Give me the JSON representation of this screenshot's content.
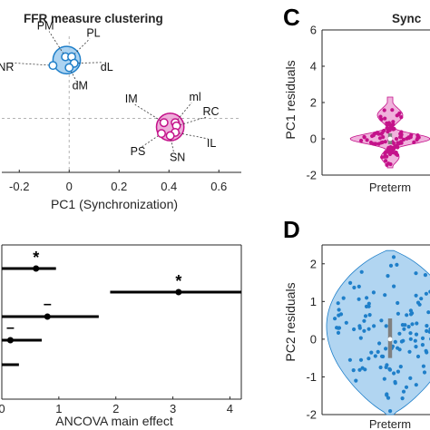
{
  "colors": {
    "blue": "#1f7fc9",
    "blue_fill": "#9ecbee",
    "magenta": "#c4128a",
    "magenta_fill": "#ec9fd3",
    "grid": "#b3b3b3",
    "axis": "#262626"
  },
  "chart_data": [
    {
      "type": "scatter",
      "title": "FFR measure clustering",
      "xlabel": "PC1 (Synchronization)",
      "ylabel": "",
      "xlim": [
        -0.27,
        0.69
      ],
      "ylim": [
        -0.25,
        0.38
      ],
      "xticks": [
        -0.2,
        0,
        0.2,
        0.4,
        0.6
      ],
      "xtick_labels": [
        "-0.2",
        "0",
        "0.2",
        "0.4",
        "0.6"
      ],
      "grid": "dashed zero lines",
      "clusters": [
        {
          "color": "blue",
          "center": [
            -0.01,
            0.27
          ],
          "radius": 0.055,
          "points": [
            {
              "label": "PM",
              "x": -0.015,
              "y": 0.285
            },
            {
              "label": "PL",
              "x": 0.01,
              "y": 0.285
            },
            {
              "label": "NR",
              "x": -0.065,
              "y": 0.245
            },
            {
              "label": "dL",
              "x": 0.02,
              "y": 0.255
            },
            {
              "label": "dM",
              "x": 0.0,
              "y": 0.235
            }
          ]
        },
        {
          "color": "magenta",
          "center": [
            0.405,
            -0.04
          ],
          "radius": 0.055,
          "points": [
            {
              "label": "IM",
              "x": 0.38,
              "y": -0.02
            },
            {
              "label": "ml",
              "x": 0.425,
              "y": -0.02
            },
            {
              "label": "RC",
              "x": 0.43,
              "y": -0.035
            },
            {
              "label": "IL",
              "x": 0.425,
              "y": -0.065
            },
            {
              "label": "PS",
              "x": 0.37,
              "y": -0.07
            },
            {
              "label": "SN",
              "x": 0.405,
              "y": -0.08
            }
          ]
        }
      ]
    },
    {
      "type": "forest",
      "title": "",
      "xlabel": "ANCOVA main effect",
      "xlim": [
        0,
        4.2
      ],
      "xticks": [
        0,
        1,
        2,
        3,
        4
      ],
      "xtick_labels": [
        "0",
        "1",
        "2",
        "3",
        "4"
      ],
      "rows": [
        {
          "estimate": 0.6,
          "low": 0.0,
          "high": 0.95,
          "marker": "*"
        },
        {
          "estimate": 3.1,
          "low": 1.9,
          "high": 4.2,
          "marker": "*"
        },
        {
          "estimate": 0.8,
          "low": 0.0,
          "high": 1.7,
          "marker": "–"
        },
        {
          "estimate": 0.15,
          "low": 0.0,
          "high": 0.7,
          "marker": "–"
        },
        {
          "estimate": null,
          "low": 0.0,
          "high": 0.3,
          "marker": ""
        }
      ]
    },
    {
      "type": "violin",
      "panel_label": "C",
      "title": "Sync",
      "ylabel": "PC1 residuals",
      "ylim": [
        -2,
        6
      ],
      "yticks": [
        -2,
        0,
        2,
        4,
        6
      ],
      "ytick_labels": [
        "-2",
        "0",
        "2",
        "4",
        "6"
      ],
      "categories": [
        "Preterm"
      ],
      "color": "magenta",
      "median": 0,
      "q1": -0.3,
      "q3": 0.3,
      "n_points": 110
    },
    {
      "type": "violin",
      "panel_label": "D",
      "title": "",
      "ylabel": "PC2 residuals",
      "ylim": [
        -2,
        2.5
      ],
      "yticks": [
        -2,
        -1,
        0,
        1,
        2
      ],
      "ytick_labels": [
        "-2",
        "-1",
        "0",
        "1",
        "2"
      ],
      "categories": [
        "Preterm"
      ],
      "color": "blue",
      "median": 0,
      "q1": -0.5,
      "q3": 0.55,
      "n_points": 130
    }
  ]
}
